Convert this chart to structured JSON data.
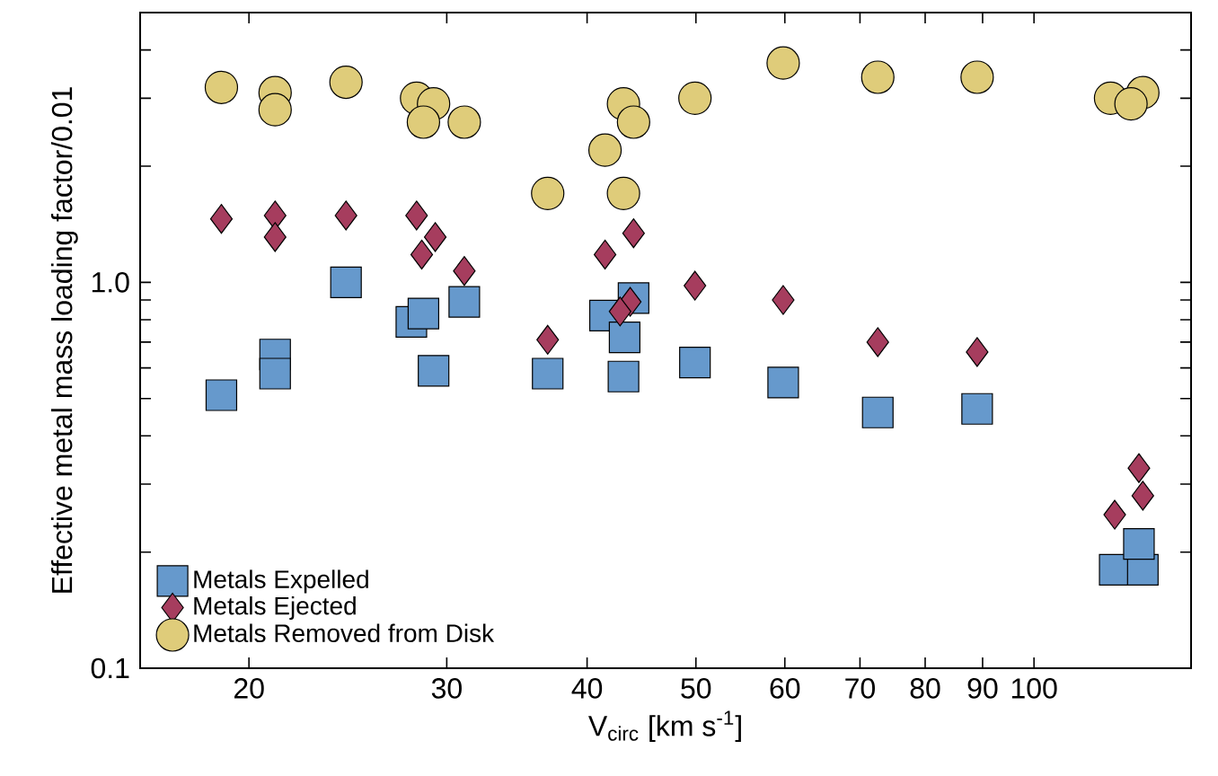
{
  "chart_data": {
    "type": "scatter",
    "xlabel": "V$_{circ}$ [km s$^{-1}$]",
    "ylabel": "Effective metal mass loading factor/0.01",
    "log": "xy",
    "grid": false,
    "legend": "bottom left",
    "xlim": [
      16,
      138
    ],
    "ylim": [
      0.1,
      5
    ],
    "xticks": [
      20,
      30,
      40,
      50,
      60,
      70,
      80,
      90,
      100
    ],
    "yticks": [
      0.1,
      {
        "value": 0.2,
        "label": null
      },
      {
        "value": 0.3,
        "label": null
      },
      {
        "value": 0.4,
        "label": null
      },
      {
        "value": 0.5,
        "label": null
      },
      {
        "value": 0.6,
        "label": null
      },
      {
        "value": 0.7,
        "label": null
      },
      {
        "value": 0.8,
        "label": null
      },
      {
        "value": 0.9,
        "label": null
      },
      {
        "value": 1,
        "label": "1.0"
      },
      {
        "value": 2,
        "label": null
      },
      {
        "value": 3,
        "label": null
      },
      {
        "value": 4,
        "label": null
      }
    ],
    "series": [
      {
        "name": "Metals Expelled",
        "color": "#6699cc",
        "marker": "square",
        "x": [
          18.9,
          21.1,
          21.1,
          24.4,
          27.9,
          28.6,
          29.2,
          31.1,
          36.9,
          41.5,
          44.0,
          43.2,
          43.1,
          49.9,
          59.8,
          72.6,
          89.0,
          118,
          125,
          124
        ],
        "values": [
          0.51,
          0.65,
          0.58,
          1.0,
          0.79,
          0.83,
          0.59,
          0.89,
          0.58,
          0.82,
          0.91,
          0.72,
          0.57,
          0.62,
          0.55,
          0.46,
          0.47,
          0.18,
          0.18,
          0.21
        ]
      },
      {
        "name": "Metals Ejected",
        "color": "#a63d5e",
        "marker": "diamond",
        "x": [
          18.9,
          21.1,
          21.1,
          24.4,
          28.2,
          29.3,
          28.5,
          31.1,
          36.9,
          41.5,
          44.0,
          43.7,
          42.8,
          49.9,
          59.8,
          72.6,
          89.0,
          118,
          124,
          125
        ],
        "values": [
          1.46,
          1.49,
          1.31,
          1.49,
          1.49,
          1.31,
          1.18,
          1.07,
          0.71,
          1.18,
          1.34,
          0.89,
          0.84,
          0.98,
          0.9,
          0.7,
          0.66,
          0.25,
          0.33,
          0.28
        ]
      },
      {
        "name": "Metals Removed from Disk",
        "color": "#dfcc7a",
        "marker": "circle",
        "x": [
          18.9,
          21.1,
          21.1,
          24.4,
          28.2,
          29.2,
          28.6,
          31.1,
          36.9,
          41.5,
          43.1,
          44.0,
          43.1,
          49.9,
          59.8,
          72.6,
          89.0,
          117,
          125,
          122
        ],
        "values": [
          3.2,
          3.1,
          2.8,
          3.3,
          3.0,
          2.9,
          2.6,
          2.6,
          1.7,
          2.2,
          2.9,
          2.6,
          1.7,
          3.0,
          3.7,
          3.4,
          3.4,
          3.0,
          3.1,
          2.9
        ]
      }
    ]
  }
}
